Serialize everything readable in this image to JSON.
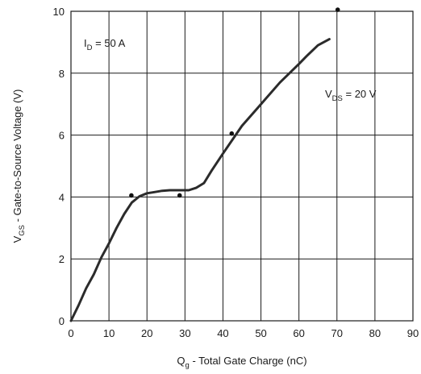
{
  "chart_data": {
    "type": "line",
    "xlabel": {
      "main": "Q",
      "sub": "g",
      "rest": " - Total Gate Charge (nC)"
    },
    "ylabel": {
      "main": "V",
      "sub": "GS",
      "rest": " - Gate-to-Source Voltage (V)"
    },
    "xlim": [
      0,
      90
    ],
    "ylim": [
      0,
      10
    ],
    "x_ticks": [
      0,
      10,
      20,
      30,
      40,
      50,
      60,
      70,
      80,
      90
    ],
    "y_ticks": [
      0,
      2,
      4,
      6,
      8,
      10
    ],
    "grid": true,
    "annotations": [
      {
        "id": "id",
        "main": "I",
        "sub": "D",
        "rest": " = 50 A"
      },
      {
        "id": "vds",
        "main": "V",
        "sub": "DS",
        "rest": " = 20 V"
      }
    ],
    "series": [
      {
        "x": [
          0,
          2,
          4,
          6,
          8,
          10,
          12,
          14,
          16,
          18,
          20,
          22,
          24,
          26,
          28,
          30,
          31,
          33,
          35,
          37,
          40,
          45,
          50,
          55,
          60,
          62,
          65,
          68
        ],
        "y": [
          0,
          0.5,
          1.05,
          1.5,
          2.05,
          2.5,
          3.0,
          3.45,
          3.82,
          4.02,
          4.12,
          4.16,
          4.2,
          4.22,
          4.22,
          4.22,
          4.22,
          4.3,
          4.45,
          4.85,
          5.4,
          6.3,
          7.0,
          7.7,
          8.3,
          8.55,
          8.9,
          9.1
        ]
      }
    ],
    "markers": [
      {
        "x": 15.9,
        "y": 4.05
      },
      {
        "x": 28.6,
        "y": 4.05
      },
      {
        "x": 42.3,
        "y": 6.05
      },
      {
        "x": 70.2,
        "y": 10.05
      }
    ],
    "colors": {
      "line": "#2b2b2b",
      "grid": "#1a1a1a",
      "text": "#1a1a1a"
    }
  }
}
